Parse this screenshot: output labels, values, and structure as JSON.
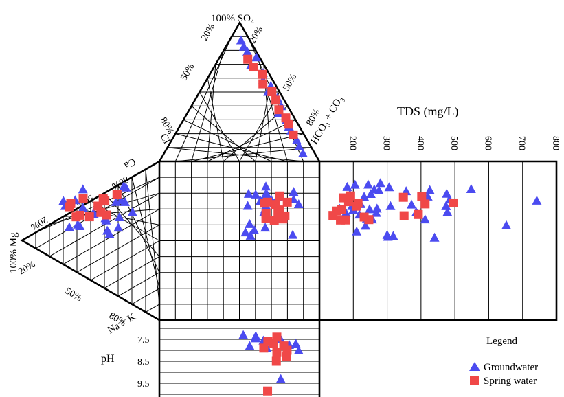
{
  "chart_data": {
    "type": "scatter",
    "labels": {
      "so4_apex": "100% SO",
      "so4_sub": "4",
      "mg_apex": "100% Mg",
      "hco3": "HCO",
      "hco3_sub": "3",
      "hco3_plus": " + CO",
      "co3_sub": "3",
      "cl": "Cl",
      "ca": "Ca",
      "nak": "Na + K",
      "ph": "pH",
      "tds_title": "TDS (mg/L)",
      "legend_title": "Legend"
    },
    "percent_ticks": {
      "so4_left_20": "20%",
      "so4_right_20": "20%",
      "so4_left_50": "50%",
      "so4_right_50": "50%",
      "so4_left_80": "80%",
      "so4_right_80": "80%",
      "ca_80": "80%",
      "ca_50": "50%",
      "ca_20": "20%",
      "mg_20": "20%",
      "mg_50": "50%",
      "mg_80": "80%"
    },
    "tds_axis": {
      "ticks": [
        "200",
        "300",
        "400",
        "500",
        "600",
        "700",
        "800"
      ],
      "range": [
        100,
        800
      ]
    },
    "ph_axis": {
      "ticks": [
        "7.5",
        "8.5",
        "9.5"
      ],
      "range": [
        7,
        10
      ]
    },
    "series": [
      {
        "name": "Groundwater",
        "marker": "triangle",
        "color": "#4B4BF0",
        "tds": [
          160,
          178,
          182,
          190,
          196,
          200,
          205,
          210,
          218,
          222,
          232,
          236,
          240,
          244,
          248,
          252,
          256,
          262,
          268,
          270,
          276,
          280,
          300,
          302,
          306,
          310,
          318,
          356,
          372,
          386,
          412,
          420,
          426,
          440,
          474,
          476,
          478,
          484,
          548,
          652,
          742
        ]
      },
      {
        "name": "Spring water",
        "marker": "square",
        "color": "#F04848",
        "tds": [
          140,
          150,
          162,
          166,
          170,
          178,
          186,
          192,
          210,
          214,
          232,
          246,
          348,
          350,
          392,
          402,
          412,
          496
        ]
      }
    ],
    "ph_values": {
      "Groundwater": [
        7.3,
        7.35,
        7.4,
        7.45,
        7.5,
        7.55,
        7.6,
        7.7,
        7.75,
        7.8,
        7.9,
        8.0,
        9.3
      ],
      "Spring water": [
        7.4,
        7.6,
        7.7,
        7.8,
        7.9,
        8.0,
        8.1,
        8.3,
        8.5,
        9.85
      ]
    },
    "legend": {
      "title": "Legend",
      "items": [
        "Groundwater",
        "Spring water"
      ]
    }
  }
}
